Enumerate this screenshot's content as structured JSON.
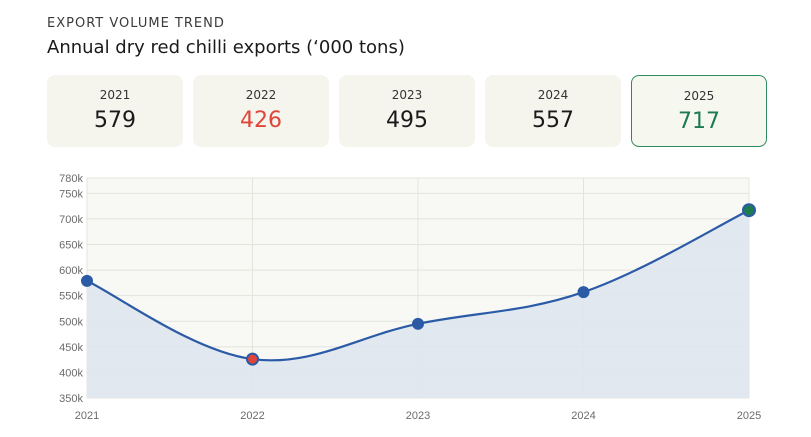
{
  "header": {
    "eyebrow": "EXPORT VOLUME TREND",
    "title": "Annual dry red chilli exports (‘000 tons)"
  },
  "cards": [
    {
      "year": "2021",
      "value": "579"
    },
    {
      "year": "2022",
      "value": "426"
    },
    {
      "year": "2023",
      "value": "495"
    },
    {
      "year": "2024",
      "value": "557"
    },
    {
      "year": "2025",
      "value": "717"
    }
  ],
  "colors": {
    "line": "#2b5ba6",
    "area": "#dfe5ef",
    "low_point": "#e0453a",
    "high_point": "#1e7a4f",
    "highlight_border": "#2e8b60"
  },
  "chart_data": {
    "type": "area",
    "x": [
      "2021",
      "2022",
      "2023",
      "2024",
      "2025"
    ],
    "series": [
      {
        "values": [
          579,
          426,
          495,
          557,
          717
        ]
      }
    ],
    "yticks": [
      "350k",
      "400k",
      "450k",
      "500k",
      "550k",
      "600k",
      "650k",
      "700k",
      "750k",
      "780k"
    ],
    "ytick_values": [
      350,
      400,
      450,
      500,
      550,
      600,
      650,
      700,
      750,
      780
    ],
    "ylim": [
      350,
      780
    ],
    "grid": true,
    "title": "",
    "xlabel": "",
    "ylabel": ""
  }
}
